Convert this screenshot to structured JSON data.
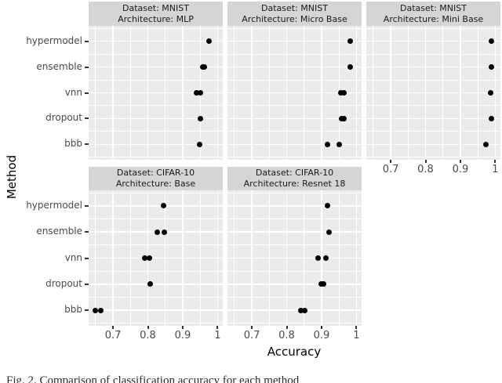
{
  "figure": {
    "x_axis_title": "Accuracy",
    "y_axis_title": "Method",
    "caption": "Fig. 2. Comparison of classification accuracy for each method",
    "strip_dataset_prefix": "Dataset: ",
    "strip_architecture_prefix": "Architecture: ",
    "colors": {
      "panel_bg": "#ebebeb",
      "strip_bg": "#d5d5d5",
      "gridline": "#ffffff",
      "point": "#000000",
      "tick_text": "#4a4a4a",
      "axis_title_text": "#000000"
    }
  },
  "chart_data": {
    "type": "scatter",
    "facet_grid": true,
    "x_label": "Accuracy",
    "y_label": "Method",
    "y_categories": [
      "hypermodel",
      "ensemble",
      "vnn",
      "dropout",
      "bbb"
    ],
    "x_ticks": [
      0.7,
      0.8,
      0.9,
      1
    ],
    "x_tick_labels": [
      "0.7",
      "0.8",
      "0.9",
      "1"
    ],
    "x_minor_ticks": [
      0.65,
      0.75,
      0.85,
      0.95
    ],
    "x_domain": [
      0.63,
      1.015
    ],
    "grid": true,
    "legend": "none",
    "facets": [
      {
        "dataset": "MNIST",
        "architecture": "MLP",
        "col": 0,
        "row": 0,
        "axis_below": false,
        "points": {
          "hypermodel": [
            0.975
          ],
          "ensemble": [
            0.958,
            0.962
          ],
          "vnn": [
            0.94,
            0.951
          ],
          "dropout": [
            0.951
          ],
          "bbb": [
            0.949
          ]
        }
      },
      {
        "dataset": "MNIST",
        "architecture": "Micro Base",
        "col": 1,
        "row": 0,
        "axis_below": false,
        "points": {
          "hypermodel": [
            0.982
          ],
          "ensemble": [
            0.982
          ],
          "vnn": [
            0.955,
            0.965
          ],
          "dropout": [
            0.958,
            0.965
          ],
          "bbb": [
            0.916,
            0.95
          ]
        }
      },
      {
        "dataset": "MNIST",
        "architecture": "Mini Base",
        "col": 2,
        "row": 0,
        "axis_below": true,
        "points": {
          "hypermodel": [
            0.988
          ],
          "ensemble": [
            0.988
          ],
          "vnn": [
            0.987
          ],
          "dropout": [
            0.988
          ],
          "bbb": [
            0.974
          ]
        }
      },
      {
        "dataset": "CIFAR-10",
        "architecture": "Base",
        "col": 0,
        "row": 1,
        "axis_below": true,
        "points": {
          "hypermodel": [
            0.845
          ],
          "ensemble": [
            0.828,
            0.848
          ],
          "vnn": [
            0.791,
            0.805
          ],
          "dropout": [
            0.806
          ],
          "bbb": [
            0.65,
            0.665
          ]
        }
      },
      {
        "dataset": "CIFAR-10",
        "architecture": "Resnet 18",
        "col": 1,
        "row": 1,
        "axis_below": true,
        "points": {
          "hypermodel": [
            0.917
          ],
          "ensemble": [
            0.922
          ],
          "vnn": [
            0.889,
            0.912
          ],
          "dropout": [
            0.898,
            0.906
          ],
          "bbb": [
            0.841,
            0.852
          ]
        }
      }
    ]
  }
}
